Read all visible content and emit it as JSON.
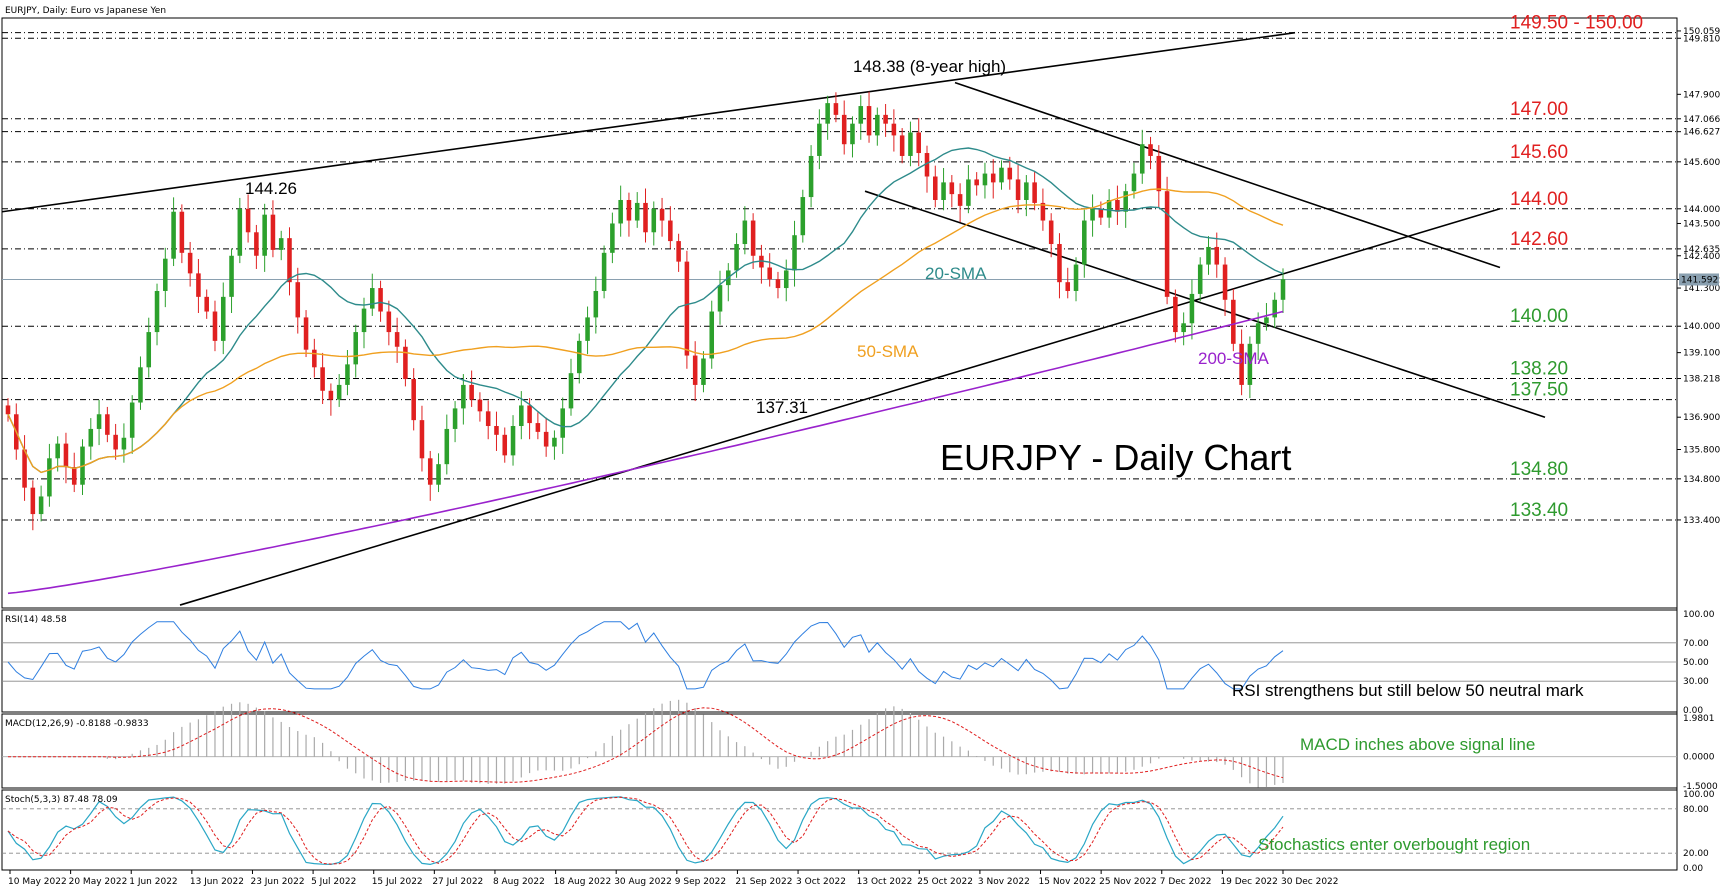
{
  "header": {
    "symbol_info": "EURJPY, Daily:  Euro vs Japanese Yen",
    "main_title": "EURJPY - Daily Chart"
  },
  "colors": {
    "bull": "#2ca02c",
    "bear": "#e02020",
    "sma20": "#2e8b8b",
    "sma50": "#f0a020",
    "sma200": "#9922cc",
    "level_red": "#e02020",
    "level_green": "#2e9a2e",
    "rsi": "#2f7fe0",
    "stoch_main": "#2aa7c6",
    "stoch_signal": "#e02020",
    "macd_signal": "#e02020"
  },
  "chart_data": {
    "type": "candlestick",
    "x_tick_labels": [
      "10 May 2022",
      "20 May 2022",
      "1 Jun 2022",
      "13 Jun 2022",
      "23 Jun 2022",
      "5 Jul 2022",
      "15 Jul 2022",
      "27 Jul 2022",
      "8 Aug 2022",
      "18 Aug 2022",
      "30 Aug 2022",
      "9 Sep 2022",
      "21 Sep 2022",
      "3 Oct 2022",
      "13 Oct 2022",
      "25 Oct 2022",
      "3 Nov 2022",
      "15 Nov 2022",
      "25 Nov 2022",
      "7 Dec 2022",
      "19 Dec 2022",
      "30 Dec 2022"
    ],
    "price_axis": {
      "range": [
        130.4,
        150.5
      ],
      "ticks": [
        "133.400",
        "134.800",
        "135.800",
        "136.900",
        "138.218",
        "139.100",
        "140.000",
        "141.300",
        "141.592",
        "142.400",
        "142.635",
        "143.500",
        "144.000",
        "145.600",
        "146.627",
        "147.066",
        "147.900",
        "149.810",
        "150.059"
      ]
    },
    "levels": [
      {
        "value": 150.0,
        "label": "149.50 - 150.00",
        "color": "red"
      },
      {
        "value": 149.81,
        "label": "",
        "color": "red"
      },
      {
        "value": 147.066,
        "label": "147.00",
        "color": "red"
      },
      {
        "value": 146.627,
        "label": "",
        "color": "red"
      },
      {
        "value": 145.6,
        "label": "145.60",
        "color": "red"
      },
      {
        "value": 144.0,
        "label": "144.00",
        "color": "red"
      },
      {
        "value": 142.635,
        "label": "142.60",
        "color": "red"
      },
      {
        "value": 140.0,
        "label": "140.00",
        "color": "green"
      },
      {
        "value": 138.218,
        "label": "138.20",
        "color": "green"
      },
      {
        "value": 137.5,
        "label": "137.50",
        "color": "green"
      },
      {
        "value": 134.8,
        "label": "134.80",
        "color": "green"
      },
      {
        "value": 133.4,
        "label": "133.40",
        "color": "green"
      }
    ],
    "current_price": "141.592",
    "annotations": [
      {
        "text": "148.38 (8-year high)",
        "value": 148.38
      },
      {
        "text": "144.26",
        "value": 144.26
      },
      {
        "text": "137.31",
        "value": 137.31
      },
      {
        "text": "20-SMA"
      },
      {
        "text": "50-SMA"
      },
      {
        "text": "200-SMA"
      }
    ],
    "ohlc_closes_approx": [
      137.0,
      135.8,
      134.5,
      133.6,
      134.2,
      135.5,
      136.0,
      135.2,
      134.6,
      135.9,
      136.5,
      137.0,
      136.3,
      135.8,
      136.2,
      137.4,
      138.6,
      139.8,
      141.2,
      142.3,
      143.9,
      142.5,
      141.8,
      141.0,
      140.5,
      139.5,
      141.0,
      142.4,
      144.0,
      143.2,
      142.4,
      143.8,
      142.6,
      143.0,
      141.5,
      140.3,
      139.2,
      138.6,
      137.8,
      137.5,
      138.0,
      138.7,
      139.8,
      140.6,
      141.3,
      140.5,
      139.8,
      139.3,
      138.2,
      136.8,
      135.5,
      134.6,
      135.3,
      136.5,
      137.2,
      138.0,
      137.5,
      137.1,
      136.6,
      136.3,
      135.6,
      136.6,
      137.3,
      136.7,
      136.4,
      135.9,
      136.2,
      137.2,
      138.4,
      139.5,
      140.3,
      141.2,
      142.5,
      143.5,
      144.3,
      143.6,
      144.2,
      143.2,
      144.0,
      143.6,
      142.9,
      142.2,
      139.0,
      138.0,
      138.9,
      140.5,
      141.4,
      141.9,
      142.8,
      143.6,
      142.4,
      142.0,
      141.6,
      141.3,
      141.9,
      143.1,
      144.4,
      145.8,
      146.9,
      147.6,
      147.2,
      146.2,
      146.9,
      147.5,
      146.5,
      147.2,
      146.9,
      146.5,
      145.8,
      146.6,
      145.9,
      145.1,
      144.3,
      144.9,
      144.5,
      144.1,
      145.0,
      144.8,
      145.2,
      144.9,
      145.4,
      145.0,
      144.3,
      144.9,
      144.2,
      143.6,
      142.8,
      141.5,
      141.2,
      142.1,
      143.6,
      144.0,
      143.7,
      144.3,
      143.9,
      144.6,
      145.2,
      146.2,
      145.8,
      144.6,
      141.0,
      139.8,
      140.1,
      141.1,
      142.1,
      142.7,
      142.1,
      140.9,
      139.4,
      138.0,
      139.4,
      140.1,
      140.3,
      140.9,
      141.6
    ],
    "sma_labels": [
      "20-SMA",
      "50-SMA",
      "200-SMA"
    ],
    "rsi": {
      "label": "RSI(14) 48.58",
      "ticks": [
        "100.00",
        "70.00",
        "50.00",
        "30.00",
        "0.00"
      ],
      "levels": [
        70,
        50,
        30
      ],
      "note": "RSI strengthens but still below 50 neutral mark"
    },
    "macd": {
      "label": "MACD(12,26,9) -0.8188 -0.9833",
      "ticks": [
        "1.9801",
        "0.0000",
        "-1.5000"
      ],
      "note": "MACD inches above signal line"
    },
    "stoch": {
      "label": "Stoch(5,3,3) 87.48 78.09",
      "ticks": [
        "100.00",
        "80.00",
        "20.00",
        "0.00"
      ],
      "levels": [
        80,
        20
      ],
      "note": "Stochastics enter overbought region"
    }
  }
}
